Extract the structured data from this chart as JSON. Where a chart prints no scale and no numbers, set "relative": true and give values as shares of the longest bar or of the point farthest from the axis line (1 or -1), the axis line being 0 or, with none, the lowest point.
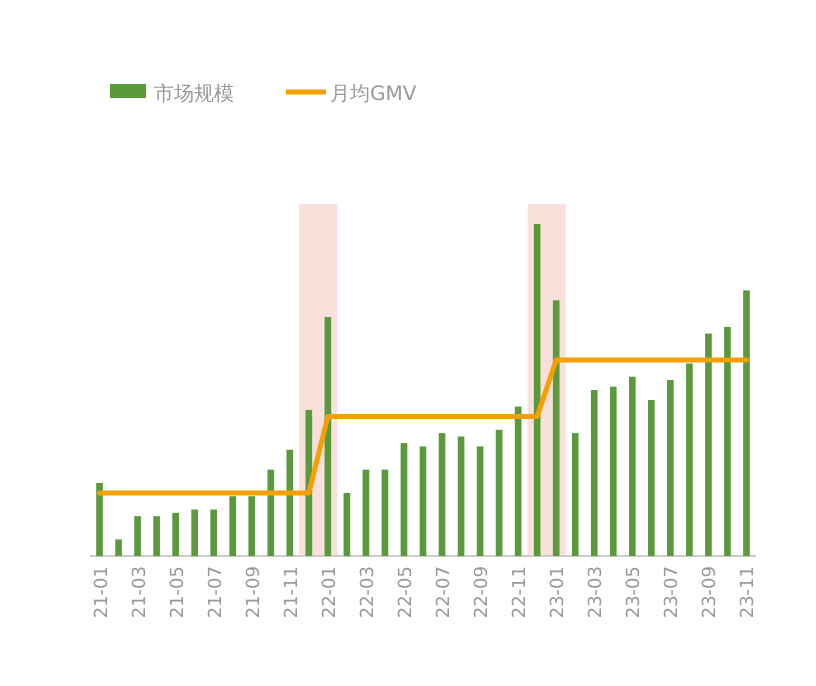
{
  "chart_data": {
    "type": "bar",
    "relative": true,
    "legend": "top left",
    "categories": [
      "21-01",
      null,
      "21-03",
      null,
      "21-05",
      null,
      "21-07",
      null,
      "21-09",
      null,
      "21-11",
      null,
      "22-01",
      null,
      "22-03",
      null,
      "22-05",
      null,
      "22-07",
      null,
      "22-09",
      null,
      "22-11",
      null,
      "23-01",
      null,
      "23-03",
      null,
      "23-05",
      null,
      "23-07",
      null,
      "23-09",
      null,
      "23-11"
    ],
    "series": [
      {
        "name": "市场规模",
        "color": "#5a9a3c",
        "values": [
          0.22,
          0.05,
          0.12,
          0.12,
          0.13,
          0.14,
          0.14,
          0.18,
          0.18,
          0.26,
          0.32,
          0.44,
          0.72,
          0.19,
          0.26,
          0.26,
          0.34,
          0.33,
          0.37,
          0.36,
          0.33,
          0.38,
          0.45,
          1,
          0.77,
          0.37,
          0.5,
          0.51,
          0.54,
          0.47,
          0.53,
          0.58,
          0.67,
          0.69,
          0.8
        ]
      },
      {
        "name": "月均GMV",
        "type": "line",
        "color": "#f5a000",
        "values": [
          0.19,
          0.19,
          0.19,
          0.19,
          0.19,
          0.19,
          0.19,
          0.19,
          0.19,
          0.19,
          0.19,
          0.19,
          0.42,
          0.42,
          0.42,
          0.42,
          0.42,
          0.42,
          0.42,
          0.42,
          0.42,
          0.42,
          0.42,
          0.42,
          0.59,
          0.59,
          0.59,
          0.59,
          0.59,
          0.59,
          0.59,
          0.59,
          0.59,
          0.59,
          0.59
        ]
      }
    ]
  }
}
